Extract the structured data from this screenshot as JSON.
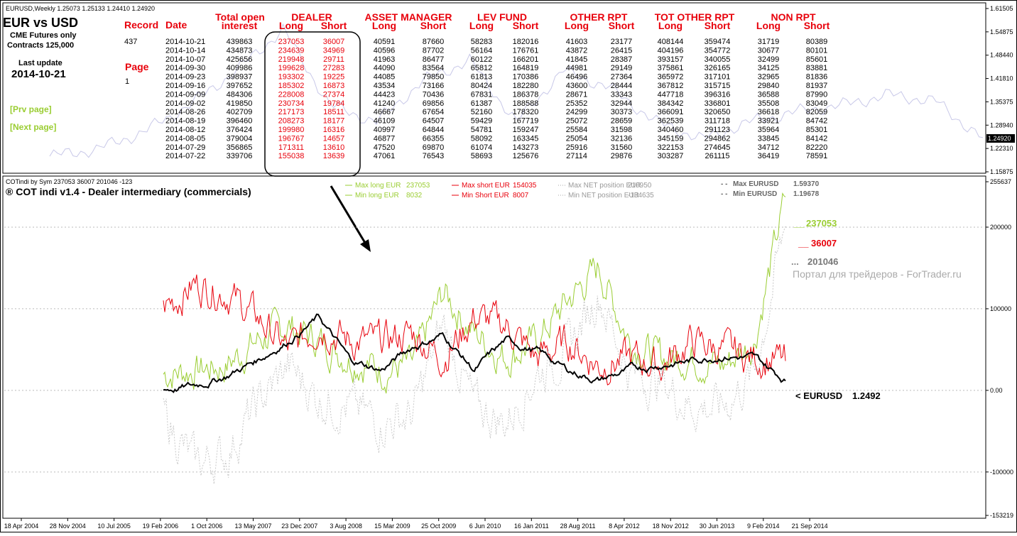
{
  "top_pane": {
    "title_bar": "EURUSD,Weekly  1.25073 1.25133 1.24410 1.24920",
    "heading": "EUR vs USD",
    "sub1": "CME Futures only",
    "sub2": "Contracts 125,000",
    "last_update_label": "Last update",
    "last_update_value": "2014-10-21",
    "prv_page": "[Prv page]",
    "next_page": "[Next page]",
    "record_label": "Record",
    "record_value": "437",
    "page_label": "Page",
    "page_value": "1",
    "price_axis": [
      "1.61505",
      "1.54875",
      "1.48440",
      "1.41810",
      "1.35375",
      "1.28940",
      "1.22310",
      "1.15875"
    ],
    "price_current": "1.24920"
  },
  "cot_table": {
    "groups": [
      {
        "name": "Total open",
        "sub": [
          "interest"
        ]
      },
      {
        "name": "DEALER",
        "sub": [
          "Long",
          "Short"
        ]
      },
      {
        "name": "ASSET MANAGER",
        "sub": [
          "Long",
          "Short"
        ]
      },
      {
        "name": "LEV FUND",
        "sub": [
          "Long",
          "Short"
        ]
      },
      {
        "name": "OTHER RPT",
        "sub": [
          "Long",
          "Short"
        ]
      },
      {
        "name": "TOT OTHER RPT",
        "sub": [
          "Long",
          "Short"
        ]
      },
      {
        "name": "NON RPT",
        "sub": [
          "Long",
          "Short"
        ]
      }
    ],
    "date_label": "Date",
    "rows": [
      [
        "2014-10-21",
        "439863",
        "237053",
        "36007",
        "40591",
        "87660",
        "58283",
        "182016",
        "41603",
        "23177",
        "408144",
        "359474",
        "31719",
        "80389"
      ],
      [
        "2014-10-14",
        "434873",
        "234639",
        "34969",
        "40596",
        "87702",
        "56164",
        "176761",
        "43872",
        "26415",
        "404196",
        "354772",
        "30677",
        "80101"
      ],
      [
        "2014-10-07",
        "425656",
        "219948",
        "29711",
        "41963",
        "86477",
        "60122",
        "166201",
        "41845",
        "28387",
        "393157",
        "340055",
        "32499",
        "85601"
      ],
      [
        "2014-09-30",
        "409986",
        "199628",
        "27283",
        "44090",
        "83564",
        "65812",
        "164819",
        "44981",
        "29149",
        "375861",
        "326165",
        "34125",
        "83881"
      ],
      [
        "2014-09-23",
        "398937",
        "193302",
        "19225",
        "44085",
        "79850",
        "61813",
        "170386",
        "46496",
        "27364",
        "365972",
        "317101",
        "32965",
        "81836"
      ],
      [
        "2014-09-16",
        "397652",
        "185302",
        "16873",
        "43534",
        "73166",
        "80424",
        "182280",
        "43600",
        "28444",
        "367812",
        "315715",
        "29840",
        "81937"
      ],
      [
        "2014-09-09",
        "484306",
        "228008",
        "27374",
        "44423",
        "70436",
        "67831",
        "186378",
        "28671",
        "33343",
        "447718",
        "396316",
        "36588",
        "87990"
      ],
      [
        "2014-09-02",
        "419850",
        "230734",
        "19784",
        "41240",
        "69856",
        "61387",
        "188588",
        "25352",
        "32944",
        "384342",
        "336801",
        "35508",
        "83049"
      ],
      [
        "2014-08-26",
        "402709",
        "217173",
        "18511",
        "46667",
        "67654",
        "52160",
        "178320",
        "24299",
        "30373",
        "366091",
        "320650",
        "36618",
        "82059"
      ],
      [
        "2014-08-19",
        "396460",
        "208273",
        "18177",
        "46109",
        "64507",
        "59429",
        "167719",
        "25072",
        "28659",
        "362539",
        "311718",
        "33921",
        "84742"
      ],
      [
        "2014-08-12",
        "376424",
        "199980",
        "16316",
        "40997",
        "64844",
        "54781",
        "159247",
        "25584",
        "31598",
        "340460",
        "291123",
        "35964",
        "85301"
      ],
      [
        "2014-08-05",
        "379004",
        "196767",
        "14657",
        "46877",
        "66355",
        "58092",
        "163345",
        "25054",
        "32136",
        "345159",
        "294862",
        "33845",
        "84142"
      ],
      [
        "2014-07-29",
        "356865",
        "171311",
        "13610",
        "47520",
        "69870",
        "61074",
        "143273",
        "25916",
        "31560",
        "322153",
        "274645",
        "34712",
        "82220"
      ],
      [
        "2014-07-22",
        "339706",
        "155038",
        "13639",
        "47061",
        "76543",
        "58693",
        "125676",
        "27114",
        "29876",
        "303287",
        "261115",
        "36419",
        "78591"
      ]
    ]
  },
  "bottom_pane": {
    "indicator_bar": "COTindi by Sym 237053 36007 201046 -123",
    "indicator_title": "® COT indi v1.4 - Dealer intermediary (commercials)",
    "legend": [
      {
        "label": "Max long EUR",
        "value": "237053",
        "color": "#9acd32"
      },
      {
        "label": "Min long EUR",
        "value": "8032",
        "color": "#9acd32"
      },
      {
        "label": "Max short EUR",
        "value": "154035",
        "color": "#e8000b"
      },
      {
        "label": "Min Short EUR",
        "value": "8007",
        "color": "#e8000b"
      },
      {
        "label": "Max NET position EUR",
        "value": "210950",
        "color": "#aaaaaa"
      },
      {
        "label": "Min NET position EUR",
        "value": "-134635",
        "color": "#aaaaaa"
      }
    ],
    "max_eurusd_label": "Max EURUSD",
    "max_eurusd_value": "1.59370",
    "min_eurusd_label": "Min EURUSD",
    "min_eurusd_value": "1.19678",
    "last_long": "237053",
    "last_short": "36007",
    "last_net": "201046",
    "eurusd_last_label": "< EURUSD",
    "eurusd_last_value": "1.2492",
    "watermark": "Портал для трейдеров - ForTrader.ru",
    "y_axis": [
      "255637",
      "200000",
      "100000",
      "0.00",
      "-100000",
      "-153219"
    ],
    "x_axis": [
      "18 Apr 2004",
      "28 Nov 2004",
      "10 Jul 2005",
      "19 Feb 2006",
      "1 Oct 2006",
      "13 May 2007",
      "23 Dec 2007",
      "3 Aug 2008",
      "15 Mar 2009",
      "25 Oct 2009",
      "6 Jun 2010",
      "16 Jan 2011",
      "28 Aug 2011",
      "8 Apr 2012",
      "18 Nov 2012",
      "30 Jun 2013",
      "9 Feb 2014",
      "21 Sep 2014"
    ],
    "colors": {
      "long": "#9acd32",
      "short": "#e8000b",
      "net": "#c8c8c8",
      "eurusd": "#000000"
    }
  },
  "chart_data": {
    "type": "line",
    "ylim": [
      -153219,
      255637
    ],
    "series": [
      {
        "name": "Max long EUR",
        "points": [
          [
            0,
            20000
          ],
          [
            0.05,
            25000
          ],
          [
            0.1,
            30000
          ],
          [
            0.15,
            60000
          ],
          [
            0.2,
            80000
          ],
          [
            0.25,
            60000
          ],
          [
            0.3,
            40000
          ],
          [
            0.35,
            25000
          ],
          [
            0.4,
            30000
          ],
          [
            0.45,
            120000
          ],
          [
            0.5,
            70000
          ],
          [
            0.55,
            40000
          ],
          [
            0.6,
            60000
          ],
          [
            0.65,
            110000
          ],
          [
            0.7,
            150000
          ],
          [
            0.75,
            60000
          ],
          [
            0.8,
            40000
          ],
          [
            0.85,
            40000
          ],
          [
            0.9,
            30000
          ],
          [
            0.95,
            60000
          ],
          [
            1.0,
            237053
          ]
        ]
      },
      {
        "name": "Max short EUR",
        "points": [
          [
            0,
            100000
          ],
          [
            0.05,
            130000
          ],
          [
            0.1,
            120000
          ],
          [
            0.15,
            90000
          ],
          [
            0.2,
            50000
          ],
          [
            0.25,
            80000
          ],
          [
            0.3,
            60000
          ],
          [
            0.35,
            60000
          ],
          [
            0.4,
            70000
          ],
          [
            0.45,
            40000
          ],
          [
            0.5,
            90000
          ],
          [
            0.55,
            80000
          ],
          [
            0.6,
            40000
          ],
          [
            0.65,
            60000
          ],
          [
            0.7,
            30000
          ],
          [
            0.75,
            40000
          ],
          [
            0.8,
            30000
          ],
          [
            0.85,
            60000
          ],
          [
            0.9,
            50000
          ],
          [
            0.95,
            40000
          ],
          [
            1.0,
            36007
          ]
        ]
      },
      {
        "name": "Max NET position EUR",
        "points": [
          [
            0,
            -30000
          ],
          [
            0.05,
            -90000
          ],
          [
            0.1,
            -80000
          ],
          [
            0.15,
            -20000
          ],
          [
            0.2,
            30000
          ],
          [
            0.25,
            -10000
          ],
          [
            0.3,
            -20000
          ],
          [
            0.35,
            -40000
          ],
          [
            0.4,
            -30000
          ],
          [
            0.45,
            80000
          ],
          [
            0.5,
            -20000
          ],
          [
            0.55,
            -40000
          ],
          [
            0.6,
            20000
          ],
          [
            0.65,
            50000
          ],
          [
            0.7,
            120000
          ],
          [
            0.75,
            20000
          ],
          [
            0.8,
            10000
          ],
          [
            0.85,
            -20000
          ],
          [
            0.9,
            -20000
          ],
          [
            0.95,
            20000
          ],
          [
            1.0,
            201046
          ]
        ]
      },
      {
        "name": "< EURUSD",
        "points": [
          [
            0,
            1.2
          ],
          [
            0.05,
            1.22
          ],
          [
            0.1,
            1.27
          ],
          [
            0.15,
            1.35
          ],
          [
            0.2,
            1.45
          ],
          [
            0.25,
            1.57
          ],
          [
            0.3,
            1.35
          ],
          [
            0.35,
            1.3
          ],
          [
            0.4,
            1.42
          ],
          [
            0.45,
            1.48
          ],
          [
            0.5,
            1.3
          ],
          [
            0.55,
            1.45
          ],
          [
            0.6,
            1.4
          ],
          [
            0.65,
            1.3
          ],
          [
            0.7,
            1.25
          ],
          [
            0.75,
            1.3
          ],
          [
            0.8,
            1.33
          ],
          [
            0.85,
            1.35
          ],
          [
            0.9,
            1.38
          ],
          [
            0.95,
            1.36
          ],
          [
            1.0,
            1.2492
          ]
        ]
      }
    ]
  }
}
